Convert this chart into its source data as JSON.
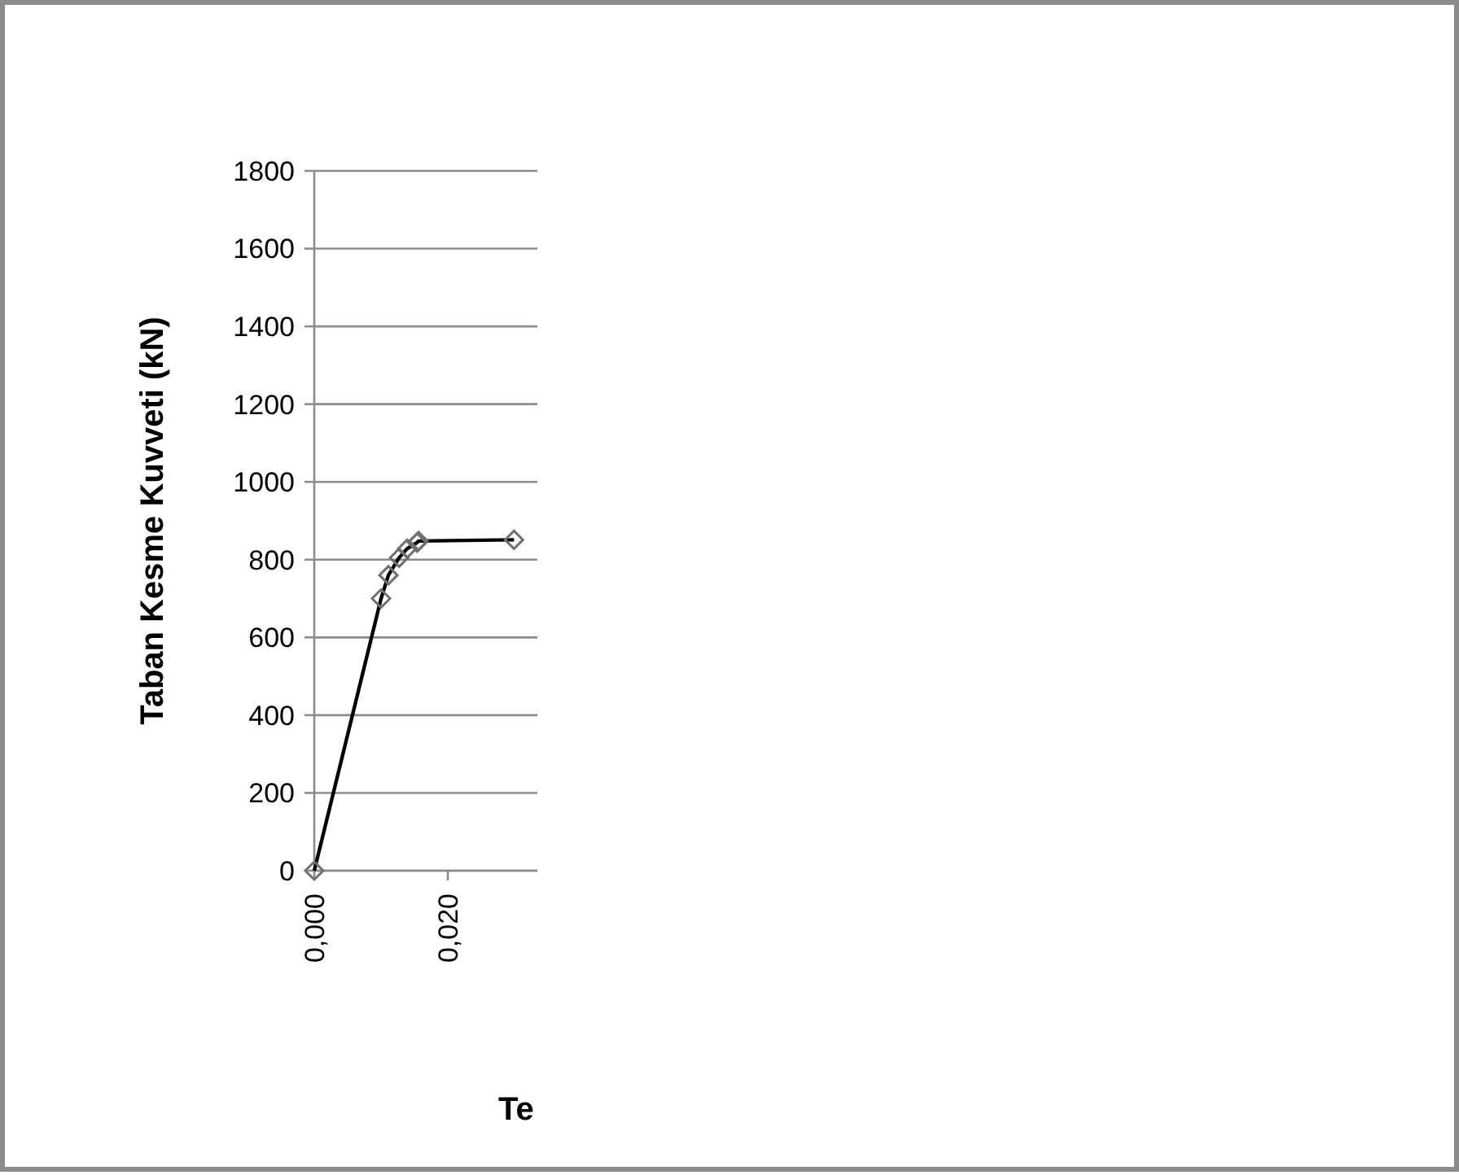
{
  "chart_data": {
    "type": "line",
    "xlabel": "Te",
    "ylabel": "Taban Kesme Kuvveti (kN)",
    "x": [
      0,
      0.01,
      0.0111,
      0.0127,
      0.0139,
      0.0154,
      0.0156,
      0.0299
    ],
    "series": [
      {
        "color": "#000000",
        "values": [
          0,
          700,
          760,
          805,
          828,
          844,
          848,
          851
        ]
      }
    ],
    "xlim": [
      0,
      0.0334
    ],
    "xticks": [
      {
        "value": 0,
        "label": "0,000"
      },
      {
        "value": 0.02,
        "label": "0,020"
      }
    ],
    "ylim": [
      0,
      1800
    ],
    "yticks": [
      0,
      200,
      400,
      600,
      800,
      1000,
      1200,
      1400,
      1600,
      1800
    ],
    "grid": "y",
    "marker": "diamond",
    "line_style": "solid"
  }
}
